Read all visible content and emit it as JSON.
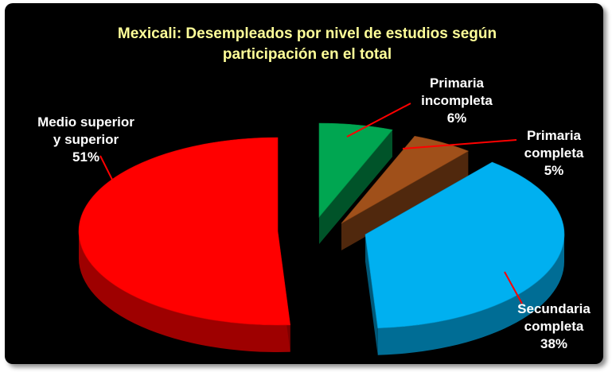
{
  "chart_data": {
    "type": "pie",
    "title_lines": [
      "Mexicali: Desempleados por nivel de estudios según",
      "participación en el total"
    ],
    "slices": [
      {
        "lines": [
          "Primaria",
          "incompleta",
          "6%"
        ],
        "value": 6,
        "color": "#00a651"
      },
      {
        "lines": [
          "Primaria",
          "completa",
          "5%"
        ],
        "value": 5,
        "color": "#a0501a"
      },
      {
        "lines": [
          "Secundaria",
          "completa",
          "38%"
        ],
        "value": 38,
        "color": "#00b0f0"
      },
      {
        "lines": [
          "Medio superior",
          "y superior",
          "51%"
        ],
        "value": 51,
        "color": "#ff0000"
      }
    ],
    "legend": "none",
    "three_d": true,
    "exploded": true,
    "leader_line_color": "#ff0000"
  }
}
